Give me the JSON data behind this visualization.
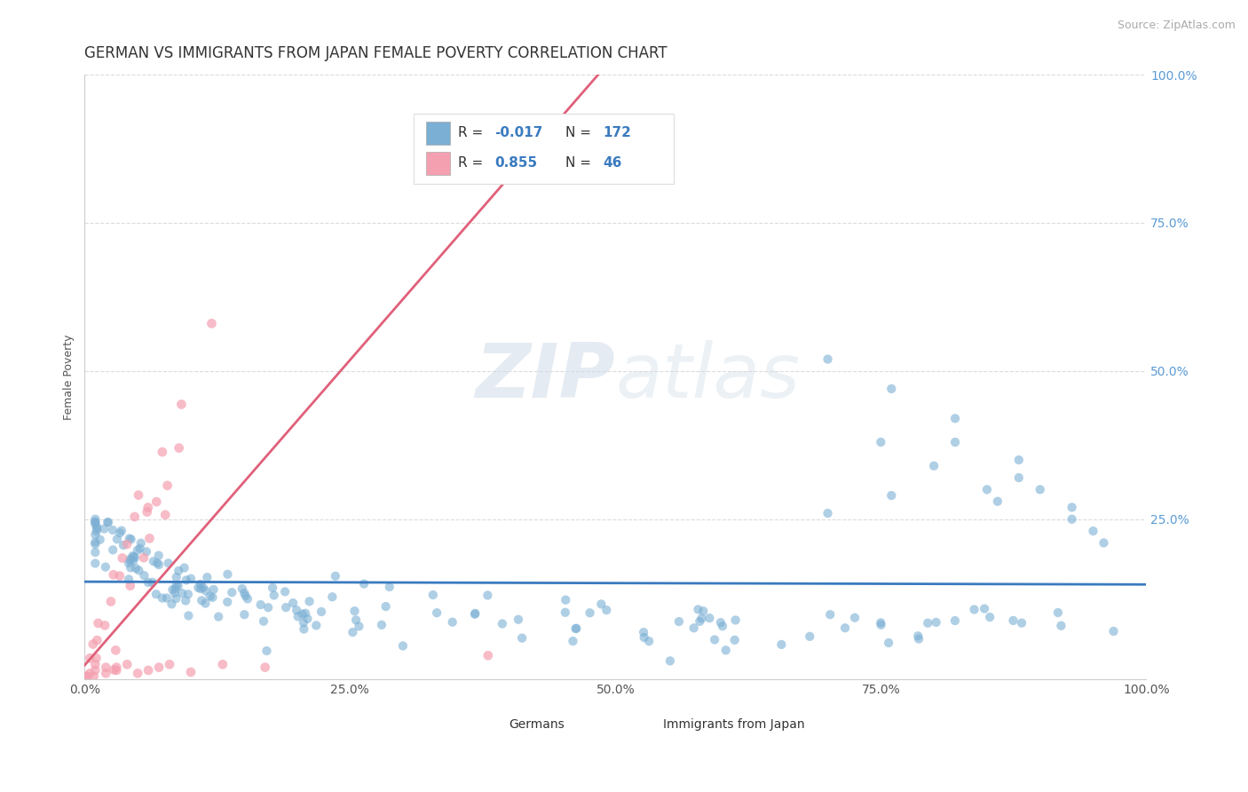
{
  "title": "GERMAN VS IMMIGRANTS FROM JAPAN FEMALE POVERTY CORRELATION CHART",
  "source": "Source: ZipAtlas.com",
  "ylabel": "Female Poverty",
  "watermark_zip": "ZIP",
  "watermark_atlas": "atlas",
  "xlim": [
    0.0,
    1.0
  ],
  "ylim": [
    -0.02,
    1.0
  ],
  "xtick_labels": [
    "0.0%",
    "25.0%",
    "50.0%",
    "75.0%",
    "100.0%"
  ],
  "xtick_vals": [
    0.0,
    0.25,
    0.5,
    0.75,
    1.0
  ],
  "ytick_labels": [
    "25.0%",
    "50.0%",
    "75.0%",
    "100.0%"
  ],
  "ytick_vals": [
    0.25,
    0.5,
    0.75,
    1.0
  ],
  "german_color": "#7bafd4",
  "japan_color": "#f4a0b0",
  "german_line_color": "#3a7abf",
  "japan_line_color": "#e0607a",
  "german_R": -0.017,
  "german_N": 172,
  "japan_R": 0.855,
  "japan_N": 46,
  "title_fontsize": 12,
  "axis_label_fontsize": 9,
  "tick_fontsize": 10,
  "source_fontsize": 9,
  "background_color": "#ffffff",
  "grid_color": "#cccccc",
  "legend_label_german": "Germans",
  "legend_label_japan": "Immigrants from Japan"
}
